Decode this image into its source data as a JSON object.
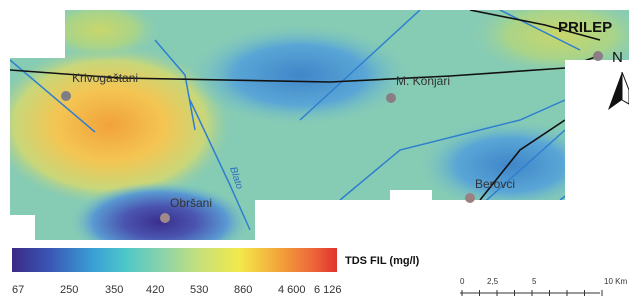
{
  "map": {
    "places": [
      "Krivogaštani",
      "M. Konjari",
      "Obršani",
      "Berovci",
      "PRILEP"
    ],
    "river": "Blato",
    "north": "N"
  },
  "legend": {
    "title": "TDS FIL (mg/l)",
    "labels": [
      "67",
      "250",
      "350",
      "420",
      "530",
      "860",
      "4 600",
      "6 126"
    ]
  },
  "scale": {
    "labels": [
      "0",
      "2,5",
      "5",
      "10 Km"
    ]
  }
}
